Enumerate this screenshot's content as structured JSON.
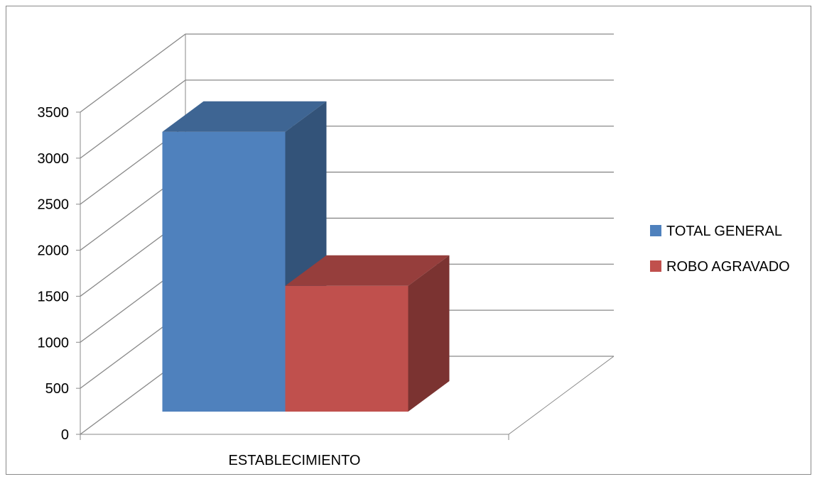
{
  "chart_data": {
    "type": "bar",
    "style": "3d-clustered-column",
    "categories": [
      "ESTABLECIMIENTO"
    ],
    "series": [
      {
        "name": "TOTAL GENERAL",
        "values": [
          3270
        ],
        "color": "#4F81BD"
      },
      {
        "name": "ROBO AGRAVADO",
        "values": [
          1470
        ],
        "color": "#C0504D"
      }
    ],
    "title": "",
    "xlabel": "",
    "ylabel": "",
    "ylim": [
      0,
      3500
    ],
    "yticks": [
      0,
      500,
      1000,
      1500,
      2000,
      2500,
      3000,
      3500
    ],
    "grid": true,
    "legend": "right",
    "colors": {
      "gridline": "#898989",
      "axis": "#898989",
      "frame": "#898989",
      "text": "#000000"
    }
  }
}
